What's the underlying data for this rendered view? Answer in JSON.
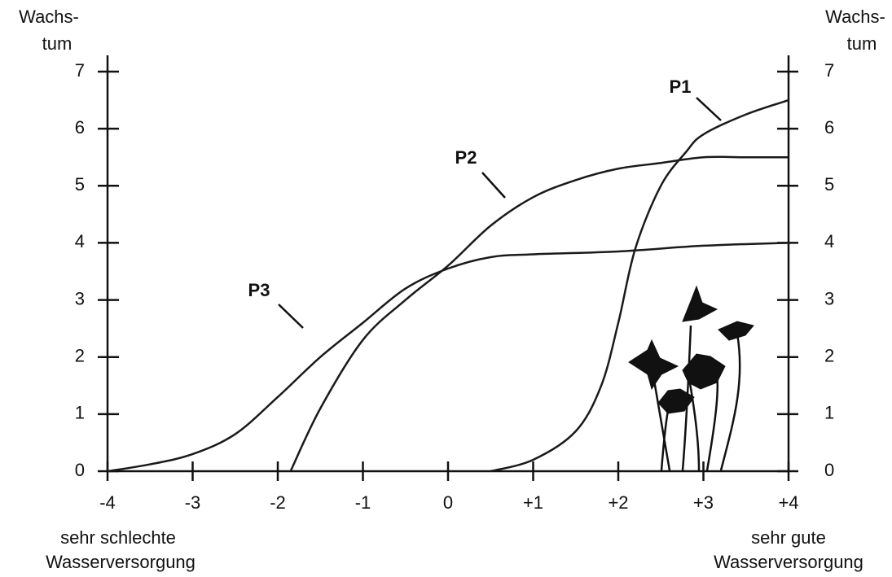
{
  "chart_data": {
    "type": "line",
    "x_label_left": [
      "sehr schlechte",
      "Wasserversorgung"
    ],
    "x_label_right": [
      "sehr gute",
      "Wasserversorgung"
    ],
    "y_label": [
      "Wachs-",
      "tum"
    ],
    "y2_label": [
      "Wachs-",
      "tum"
    ],
    "xlim": [
      -4,
      4
    ],
    "xticks": [
      -4,
      -3,
      -2,
      -1,
      0,
      {
        "value": 1,
        "label": "+1"
      },
      {
        "value": 2,
        "label": "+2"
      },
      {
        "value": 3,
        "label": "+3"
      },
      {
        "value": 4,
        "label": "+4"
      }
    ],
    "ylim": [
      0,
      7
    ],
    "yticks": [
      0,
      1,
      2,
      3,
      4,
      5,
      6,
      7
    ],
    "y2lim": [
      0,
      7
    ],
    "y2ticks": [
      0,
      1,
      2,
      3,
      4,
      5,
      6,
      7
    ],
    "color": "#1a1a1a",
    "series": [
      {
        "name": "P1",
        "x": [
          0.5,
          1,
          1.5,
          1.8,
          2,
          2.2,
          2.5,
          2.8,
          3,
          3.5,
          4
        ],
        "values": [
          0,
          0.2,
          0.7,
          1.5,
          2.6,
          3.9,
          5.0,
          5.6,
          5.9,
          6.25,
          6.5
        ]
      },
      {
        "name": "P2",
        "x": [
          -1.85,
          -1.5,
          -1,
          -0.5,
          0,
          0.5,
          1,
          1.5,
          2,
          2.5,
          3,
          3.5,
          4
        ],
        "values": [
          0,
          1.1,
          2.3,
          3.0,
          3.6,
          4.3,
          4.8,
          5.1,
          5.3,
          5.4,
          5.5,
          5.5,
          5.5
        ]
      },
      {
        "name": "P3",
        "x": [
          -4,
          -3.5,
          -3,
          -2.5,
          -2,
          -1.5,
          -1,
          -0.5,
          0,
          0.5,
          1,
          2,
          3,
          4
        ],
        "values": [
          0,
          0.12,
          0.3,
          0.65,
          1.3,
          2.0,
          2.6,
          3.2,
          3.55,
          3.75,
          3.8,
          3.85,
          3.95,
          4.0
        ]
      }
    ]
  }
}
